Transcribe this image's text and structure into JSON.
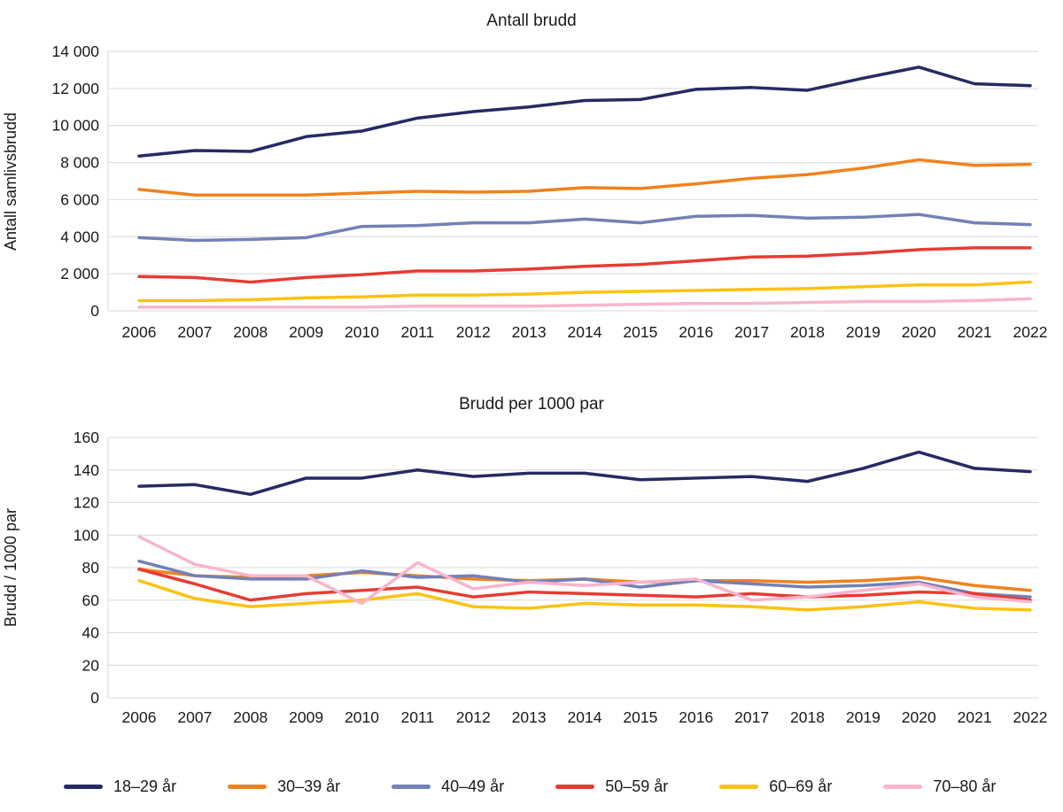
{
  "chart_data": [
    {
      "type": "line",
      "title": "Antall brudd",
      "ylabel": "Antall samlivsbrudd",
      "x": [
        2006,
        2007,
        2008,
        2009,
        2010,
        2011,
        2012,
        2013,
        2014,
        2015,
        2016,
        2017,
        2018,
        2019,
        2020,
        2021,
        2022
      ],
      "ylim": [
        0,
        14000
      ],
      "grid": true,
      "legend_position": "bottom-shared",
      "ytick_values": [
        0,
        2000,
        4000,
        6000,
        8000,
        10000,
        12000,
        14000
      ],
      "ytick_labels": [
        "0",
        "2 000",
        "4 000",
        "6 000",
        "8 000",
        "10 000",
        "12 000",
        "14 000"
      ],
      "series": [
        {
          "name": "18–29 år",
          "color": "#262a63",
          "values": [
            8350,
            8650,
            8600,
            9400,
            9700,
            10400,
            10750,
            11000,
            11350,
            11400,
            11950,
            12050,
            11900,
            12550,
            13150,
            12250,
            12150
          ]
        },
        {
          "name": "30–39 år",
          "color": "#f0821e",
          "values": [
            6550,
            6250,
            6250,
            6250,
            6350,
            6450,
            6400,
            6450,
            6650,
            6600,
            6850,
            7150,
            7350,
            7700,
            8150,
            7850,
            7900
          ]
        },
        {
          "name": "40–49 år",
          "color": "#7381b5",
          "values": [
            3950,
            3800,
            3850,
            3950,
            4550,
            4600,
            4750,
            4750,
            4950,
            4750,
            5100,
            5150,
            5000,
            5050,
            5200,
            4750,
            4650
          ]
        },
        {
          "name": "50–59 år",
          "color": "#e63c32",
          "values": [
            1850,
            1800,
            1550,
            1800,
            1950,
            2150,
            2150,
            2250,
            2400,
            2500,
            2700,
            2900,
            2950,
            3100,
            3300,
            3400,
            3400
          ]
        },
        {
          "name": "60–69 år",
          "color": "#fbc211",
          "values": [
            550,
            550,
            600,
            700,
            750,
            850,
            850,
            900,
            1000,
            1050,
            1100,
            1150,
            1200,
            1300,
            1400,
            1400,
            1550
          ]
        },
        {
          "name": "70–80 år",
          "color": "#f8b5cd",
          "values": [
            200,
            200,
            200,
            200,
            200,
            250,
            250,
            250,
            300,
            350,
            400,
            400,
            450,
            500,
            500,
            550,
            650
          ]
        }
      ]
    },
    {
      "type": "line",
      "title": "Brudd per 1000 par",
      "ylabel": "Brudd / 1000 par",
      "x": [
        2006,
        2007,
        2008,
        2009,
        2010,
        2011,
        2012,
        2013,
        2014,
        2015,
        2016,
        2017,
        2018,
        2019,
        2020,
        2021,
        2022
      ],
      "ylim": [
        0,
        160
      ],
      "grid": true,
      "legend_position": "bottom-shared",
      "ytick_values": [
        0,
        20,
        40,
        60,
        80,
        100,
        120,
        140,
        160
      ],
      "ytick_labels": [
        "0",
        "20",
        "40",
        "60",
        "80",
        "100",
        "120",
        "140",
        "160"
      ],
      "series": [
        {
          "name": "18–29 år",
          "color": "#262a63",
          "values": [
            130,
            131,
            125,
            135,
            135,
            140,
            136,
            138,
            138,
            134,
            135,
            136,
            133,
            141,
            151,
            141,
            139
          ]
        },
        {
          "name": "30–39 år",
          "color": "#f0821e",
          "values": [
            79,
            75,
            74,
            75,
            77,
            75,
            73,
            72,
            73,
            71,
            72,
            72,
            71,
            72,
            74,
            69,
            66
          ]
        },
        {
          "name": "40–49 år",
          "color": "#7381b5",
          "values": [
            84,
            75,
            73,
            73,
            78,
            74,
            75,
            71,
            73,
            68,
            72,
            70,
            68,
            69,
            71,
            64,
            62
          ]
        },
        {
          "name": "50–59 år",
          "color": "#e63c32",
          "values": [
            79,
            70,
            60,
            64,
            66,
            68,
            62,
            65,
            64,
            63,
            62,
            64,
            62,
            63,
            65,
            64,
            60
          ]
        },
        {
          "name": "60–69 år",
          "color": "#fbc211",
          "values": [
            72,
            61,
            56,
            58,
            60,
            64,
            56,
            55,
            58,
            57,
            57,
            56,
            54,
            56,
            59,
            55,
            54
          ]
        },
        {
          "name": "70–80 år",
          "color": "#f8b5cd",
          "values": [
            99,
            82,
            75,
            75,
            58,
            83,
            67,
            71,
            69,
            71,
            73,
            60,
            62,
            66,
            70,
            62,
            59
          ]
        }
      ]
    }
  ],
  "legend": {
    "items": [
      {
        "label": "18–29 år",
        "color": "#262a63"
      },
      {
        "label": "30–39 år",
        "color": "#f0821e"
      },
      {
        "label": "40–49 år",
        "color": "#7381b5"
      },
      {
        "label": "50–59 år",
        "color": "#e63c32"
      },
      {
        "label": "60–69 år",
        "color": "#fbc211"
      },
      {
        "label": "70–80 år",
        "color": "#f8b5cd"
      }
    ]
  }
}
